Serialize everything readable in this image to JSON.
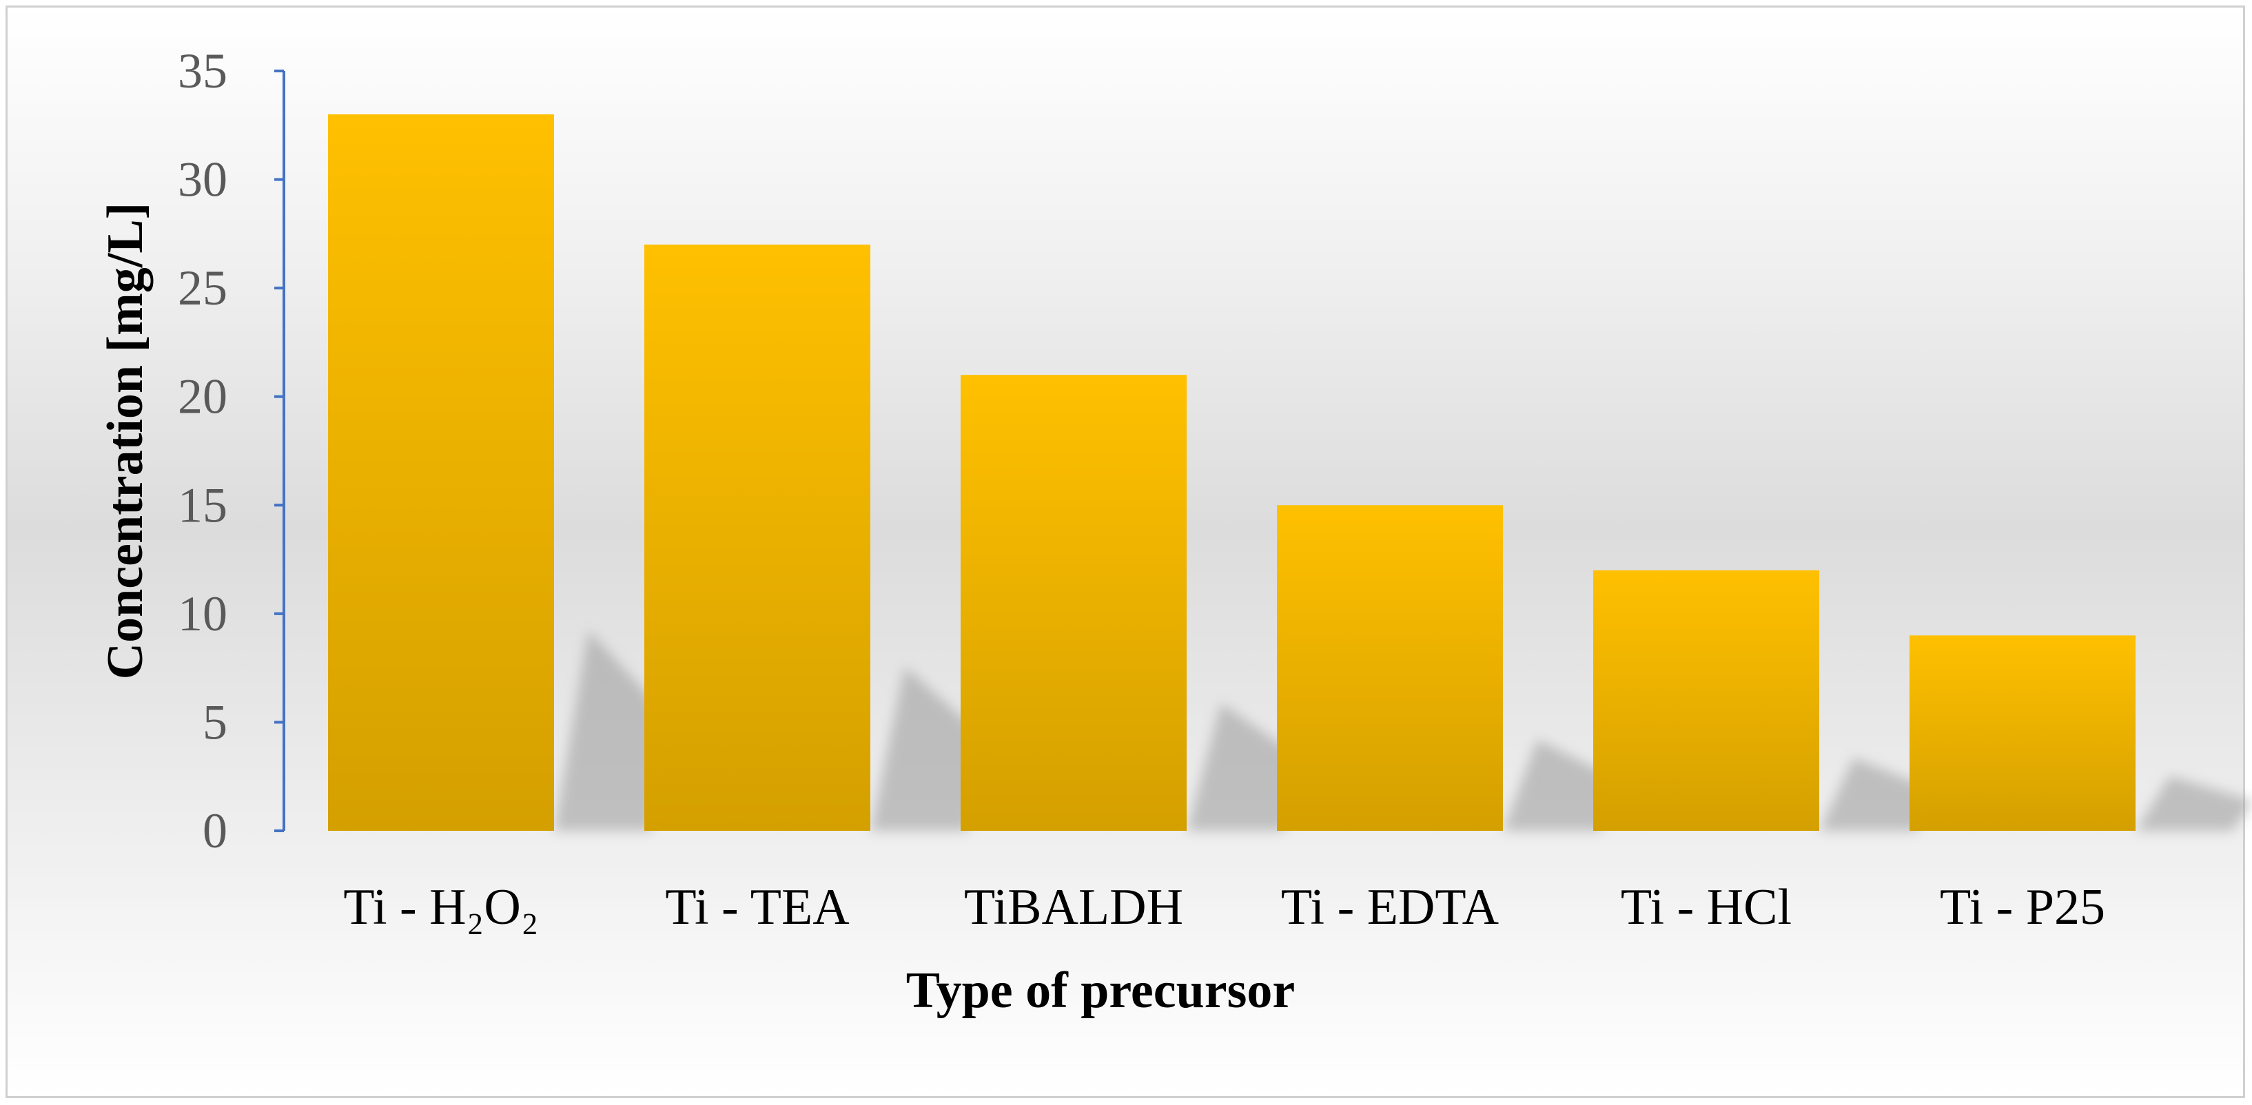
{
  "colors": {
    "bar_top": "#FFC000",
    "bar_bottom": "#D4A000",
    "axis": "#4472C4",
    "shadow": "#9a9a9a"
  },
  "chart_data": {
    "type": "bar",
    "categories": [
      "Ti - H₂O₂",
      "Ti - TEA",
      "TiBALDH",
      "Ti - EDTA",
      "Ti - HCl",
      "Ti - P25"
    ],
    "values": [
      33,
      27,
      21,
      15,
      12,
      9
    ],
    "xlabel": "Type of precursor",
    "ylabel": "Concentration [mg/L]",
    "ylim": [
      0,
      35
    ],
    "yticks": [
      0,
      5,
      10,
      15,
      20,
      25,
      30,
      35
    ],
    "grid": false,
    "legend": "none"
  }
}
